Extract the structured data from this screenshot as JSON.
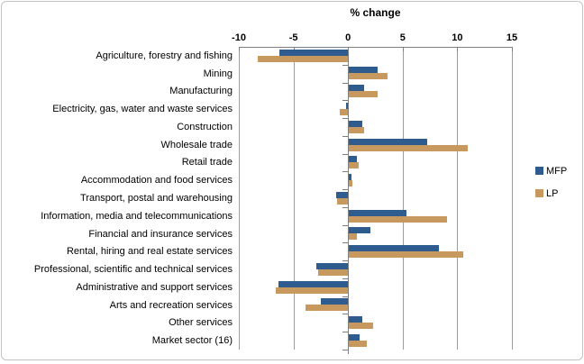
{
  "chart_data": {
    "type": "bar",
    "orientation": "horizontal",
    "title": "% change",
    "xlabel": "% change",
    "xlim": [
      -10,
      15
    ],
    "x_ticks": [
      -10,
      -5,
      0,
      5,
      10,
      15
    ],
    "grid": true,
    "legend_position": "right",
    "categories": [
      "Agriculture, forestry and fishing",
      "Mining",
      "Manufacturing",
      "Electricity, gas, water and waste services",
      "Construction",
      "Wholesale trade",
      "Retail trade",
      "Accommodation and food services",
      "Transport, postal and warehousing",
      "Information, media and telecommunications",
      "Financial and insurance services",
      "Rental, hiring and real estate services",
      "Professional, scientific and technical services",
      "Administrative and support services",
      "Arts and recreation services",
      "Other services",
      "Market sector (16)"
    ],
    "series": [
      {
        "name": "MFP",
        "color": "#2E5C8F",
        "values": [
          -6.3,
          2.6,
          1.4,
          -0.2,
          1.2,
          7.2,
          0.7,
          0.2,
          -1.1,
          5.3,
          2.0,
          8.2,
          -2.9,
          -6.4,
          -2.5,
          1.2,
          1.0
        ]
      },
      {
        "name": "LP",
        "color": "#C8995E",
        "values": [
          -8.3,
          3.5,
          2.6,
          -0.8,
          1.4,
          10.9,
          0.9,
          0.3,
          -1.0,
          9.0,
          0.7,
          10.5,
          -2.7,
          -6.6,
          -3.9,
          2.2,
          1.6
        ]
      }
    ],
    "colors": {
      "gridline": "#9C9C9C",
      "axis": "#7F7F7F",
      "border": "#C3C3C3",
      "background": "#FFFFFF",
      "text": "#000000"
    }
  }
}
